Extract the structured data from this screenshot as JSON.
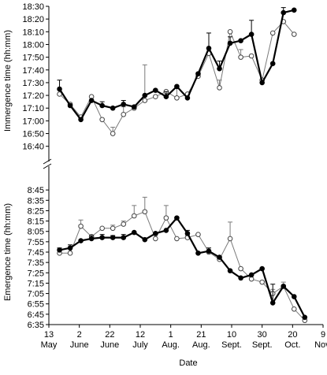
{
  "chart_data": {
    "type": "line",
    "panels": [
      {
        "id": "immergence",
        "ylabel": "Immergence time (hh:mm)",
        "y_min_minutes": 993,
        "y_max_minutes": 1110,
        "y_ticks": [
          {
            "label": "16:40",
            "minutes": 1000
          },
          {
            "label": "17:00",
            "minutes": 1020
          },
          {
            "label": "17:20",
            "minutes": 1040
          },
          {
            "label": "17:40",
            "minutes": 1060
          },
          {
            "label": "18:00",
            "minutes": 1080
          },
          {
            "label": "18:20",
            "minutes": 1100
          },
          {
            "label": "16:50",
            "minutes": 1010
          },
          {
            "label": "17:10",
            "minutes": 1030
          },
          {
            "label": "17:30",
            "minutes": 1050
          },
          {
            "label": "17:50",
            "minutes": 1070
          },
          {
            "label": "18:10",
            "minutes": 1090
          },
          {
            "label": "18:30",
            "minutes": 1110
          }
        ],
        "series": [
          {
            "marker": "filled",
            "points": [
              {
                "x": "05-20",
                "y": "17:25",
                "err": 7
              },
              {
                "x": "05-27",
                "y": "17:12"
              },
              {
                "x": "06-03",
                "y": "17:01"
              },
              {
                "x": "06-10",
                "y": "17:16"
              },
              {
                "x": "06-17",
                "y": "17:12",
                "err": 3
              },
              {
                "x": "06-24",
                "y": "17:10"
              },
              {
                "x": "07-01",
                "y": "17:13",
                "err": 3
              },
              {
                "x": "07-08",
                "y": "17:11"
              },
              {
                "x": "07-15",
                "y": "17:20"
              },
              {
                "x": "07-22",
                "y": "17:24"
              },
              {
                "x": "07-29",
                "y": "17:19",
                "err": 4
              },
              {
                "x": "08-05",
                "y": "17:27"
              },
              {
                "x": "08-12",
                "y": "17:18"
              },
              {
                "x": "08-19",
                "y": "17:37"
              },
              {
                "x": "08-26",
                "y": "17:57",
                "err": 12
              },
              {
                "x": "09-02",
                "y": "17:41",
                "err": 6
              },
              {
                "x": "09-09",
                "y": "18:01",
                "err": 5
              },
              {
                "x": "09-16",
                "y": "18:03"
              },
              {
                "x": "09-23",
                "y": "18:08",
                "err": 11
              },
              {
                "x": "09-30",
                "y": "17:30"
              },
              {
                "x": "10-07",
                "y": "17:45"
              },
              {
                "x": "10-14",
                "y": "18:25",
                "err": 4
              },
              {
                "x": "10-21",
                "y": "18:27"
              }
            ]
          },
          {
            "marker": "open",
            "points": [
              {
                "x": "05-20",
                "y": "17:21"
              },
              {
                "x": "05-27",
                "y": "17:13"
              },
              {
                "x": "06-03",
                "y": "17:03"
              },
              {
                "x": "06-10",
                "y": "17:19"
              },
              {
                "x": "06-17",
                "y": "17:01"
              },
              {
                "x": "06-24",
                "y": "16:50",
                "err": 5
              },
              {
                "x": "07-01",
                "y": "17:05",
                "err": 6
              },
              {
                "x": "07-08",
                "y": "17:10"
              },
              {
                "x": "07-15",
                "y": "17:16",
                "err": 28
              },
              {
                "x": "07-22",
                "y": "17:19"
              },
              {
                "x": "07-29",
                "y": "17:23"
              },
              {
                "x": "08-05",
                "y": "17:18",
                "err": 9
              },
              {
                "x": "08-12",
                "y": "17:21"
              },
              {
                "x": "08-19",
                "y": "17:35"
              },
              {
                "x": "08-26",
                "y": "17:53"
              },
              {
                "x": "09-02",
                "y": "17:26",
                "err": 6
              },
              {
                "x": "09-09",
                "y": "18:10"
              },
              {
                "x": "09-16",
                "y": "17:50",
                "err": 6
              },
              {
                "x": "09-23",
                "y": "17:51"
              },
              {
                "x": "09-30",
                "y": "17:32"
              },
              {
                "x": "10-07",
                "y": "18:09"
              },
              {
                "x": "10-14",
                "y": "18:18"
              },
              {
                "x": "10-21",
                "y": "18:08"
              }
            ]
          }
        ]
      },
      {
        "id": "emergence",
        "ylabel": "Emergence time (hh:mm)",
        "y_min_minutes": 395,
        "y_max_minutes": 535,
        "y_ticks": [
          {
            "label": "8:45",
            "minutes": 525
          },
          {
            "label": "8:25",
            "minutes": 505
          },
          {
            "label": "8:05",
            "minutes": 485
          },
          {
            "label": "7:45",
            "minutes": 465
          },
          {
            "label": "7:25",
            "minutes": 445
          },
          {
            "label": "7:05",
            "minutes": 425
          },
          {
            "label": "6:45",
            "minutes": 405
          },
          {
            "label": "8:35",
            "minutes": 515
          },
          {
            "label": "8:15",
            "minutes": 495
          },
          {
            "label": "7:55",
            "minutes": 475
          },
          {
            "label": "7:35",
            "minutes": 455
          },
          {
            "label": "7:15",
            "minutes": 435
          },
          {
            "label": "6:55",
            "minutes": 415
          },
          {
            "label": "6:35",
            "minutes": 395
          }
        ],
        "series": [
          {
            "marker": "filled",
            "points": [
              {
                "x": "05-20",
                "y": "7:47",
                "err": 2
              },
              {
                "x": "05-27",
                "y": "7:49",
                "err": 3
              },
              {
                "x": "06-03",
                "y": "7:56"
              },
              {
                "x": "06-10",
                "y": "7:58",
                "err": 3
              },
              {
                "x": "06-17",
                "y": "7:59",
                "err": 3
              },
              {
                "x": "06-24",
                "y": "7:59",
                "err": 2
              },
              {
                "x": "07-01",
                "y": "7:59",
                "err": 3
              },
              {
                "x": "07-08",
                "y": "8:04"
              },
              {
                "x": "07-15",
                "y": "7:57"
              },
              {
                "x": "07-22",
                "y": "8:03"
              },
              {
                "x": "07-29",
                "y": "8:06"
              },
              {
                "x": "08-05",
                "y": "8:18"
              },
              {
                "x": "08-12",
                "y": "8:03",
                "err": 3
              },
              {
                "x": "08-19",
                "y": "7:44"
              },
              {
                "x": "08-26",
                "y": "7:46",
                "err": 3
              },
              {
                "x": "09-02",
                "y": "7:40"
              },
              {
                "x": "09-09",
                "y": "7:27"
              },
              {
                "x": "09-16",
                "y": "7:20"
              },
              {
                "x": "09-23",
                "y": "7:23"
              },
              {
                "x": "09-30",
                "y": "7:29"
              },
              {
                "x": "10-07",
                "y": "6:56",
                "err": 18
              },
              {
                "x": "10-14",
                "y": "7:12"
              },
              {
                "x": "10-21",
                "y": "7:02"
              },
              {
                "x": "10-28",
                "y": "6:42"
              }
            ]
          },
          {
            "marker": "open",
            "points": [
              {
                "x": "05-20",
                "y": "7:44"
              },
              {
                "x": "05-27",
                "y": "7:44"
              },
              {
                "x": "06-03",
                "y": "8:10",
                "err": 6
              },
              {
                "x": "06-10",
                "y": "8:00"
              },
              {
                "x": "06-17",
                "y": "8:08"
              },
              {
                "x": "06-24",
                "y": "8:08",
                "err": 3
              },
              {
                "x": "07-01",
                "y": "8:12",
                "err": 3
              },
              {
                "x": "07-08",
                "y": "8:20",
                "err": 10
              },
              {
                "x": "07-15",
                "y": "8:24",
                "err": 14
              },
              {
                "x": "07-22",
                "y": "7:58"
              },
              {
                "x": "07-29",
                "y": "8:18",
                "err": 12
              },
              {
                "x": "08-05",
                "y": "7:58"
              },
              {
                "x": "08-12",
                "y": "7:59",
                "err": 2
              },
              {
                "x": "08-19",
                "y": "8:02"
              },
              {
                "x": "08-26",
                "y": "7:45"
              },
              {
                "x": "09-02",
                "y": "7:38"
              },
              {
                "x": "09-09",
                "y": "7:58",
                "err": 16
              },
              {
                "x": "09-16",
                "y": "7:29"
              },
              {
                "x": "09-23",
                "y": "7:19"
              },
              {
                "x": "09-30",
                "y": "7:16"
              },
              {
                "x": "10-07",
                "y": "7:05",
                "err": 4
              },
              {
                "x": "10-14",
                "y": "7:12",
                "err": 4
              },
              {
                "x": "10-21",
                "y": "6:50"
              },
              {
                "x": "10-28",
                "y": "6:39"
              }
            ]
          }
        ]
      }
    ],
    "x_axis": {
      "xlabel": "Date",
      "ticks": [
        {
          "day": "13",
          "month": "May",
          "date": "05-13"
        },
        {
          "day": "2",
          "month": "June",
          "date": "06-02"
        },
        {
          "day": "22",
          "month": "June",
          "date": "06-22"
        },
        {
          "day": "12",
          "month": "July",
          "date": "07-12"
        },
        {
          "day": "1",
          "month": "Aug.",
          "date": "08-01"
        },
        {
          "day": "21",
          "month": "Aug.",
          "date": "08-21"
        },
        {
          "day": "10",
          "month": "Sept.",
          "date": "09-10"
        },
        {
          "day": "30",
          "month": "Sept.",
          "date": "09-30"
        },
        {
          "day": "20",
          "month": "Oct.",
          "date": "10-20"
        },
        {
          "day": "9",
          "month": "Nov.",
          "date": "11-09"
        }
      ]
    },
    "colors": {
      "filled_series": "#000000",
      "open_series": "#7a7a7a",
      "axis": "#000000"
    }
  }
}
